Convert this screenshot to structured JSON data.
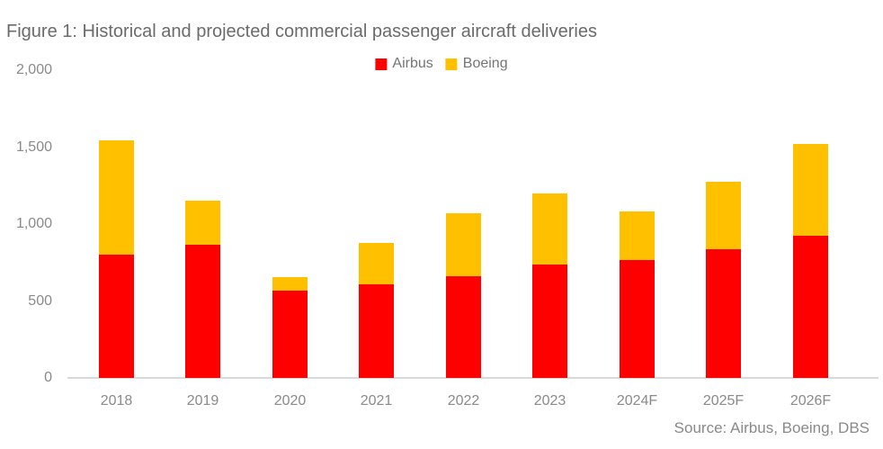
{
  "title": "Figure 1: Historical and projected commercial passenger aircraft deliveries",
  "source_note": "Source: Airbus, Boeing, DBS",
  "colors": {
    "airbus": "#fe0000",
    "boeing": "#ffc000",
    "axis_line": "#d9d9d9",
    "title_text": "#6b6b6b",
    "axis_text": "#8a8a8a"
  },
  "chart_data": {
    "type": "bar",
    "stacked": true,
    "title": "Figure 1: Historical and projected commercial passenger aircraft deliveries",
    "categories": [
      "2018",
      "2019",
      "2020",
      "2021",
      "2022",
      "2023",
      "2024F",
      "2025F",
      "2026F"
    ],
    "series": [
      {
        "name": "Airbus",
        "color": "#fe0000",
        "values": [
          800,
          863,
          566,
          611,
          661,
          735,
          766,
          836,
          925
        ]
      },
      {
        "name": "Boeing",
        "color": "#ffc000",
        "values": [
          740,
          285,
          85,
          270,
          410,
          460,
          315,
          440,
          595
        ]
      }
    ],
    "totals": [
      1540,
      1148,
      651,
      881,
      1071,
      1195,
      1081,
      1276,
      1520
    ],
    "xlabel": "",
    "ylabel": "",
    "ylim": [
      0,
      2000
    ],
    "yticks": [
      {
        "value": 0,
        "label": "0"
      },
      {
        "value": 500,
        "label": "500"
      },
      {
        "value": 1000,
        "label": "1,000"
      },
      {
        "value": 1500,
        "label": "1,500"
      },
      {
        "value": 2000,
        "label": "2,000"
      }
    ],
    "grid": false,
    "legend_position": "top-center",
    "source": "Source: Airbus, Boeing, DBS"
  }
}
